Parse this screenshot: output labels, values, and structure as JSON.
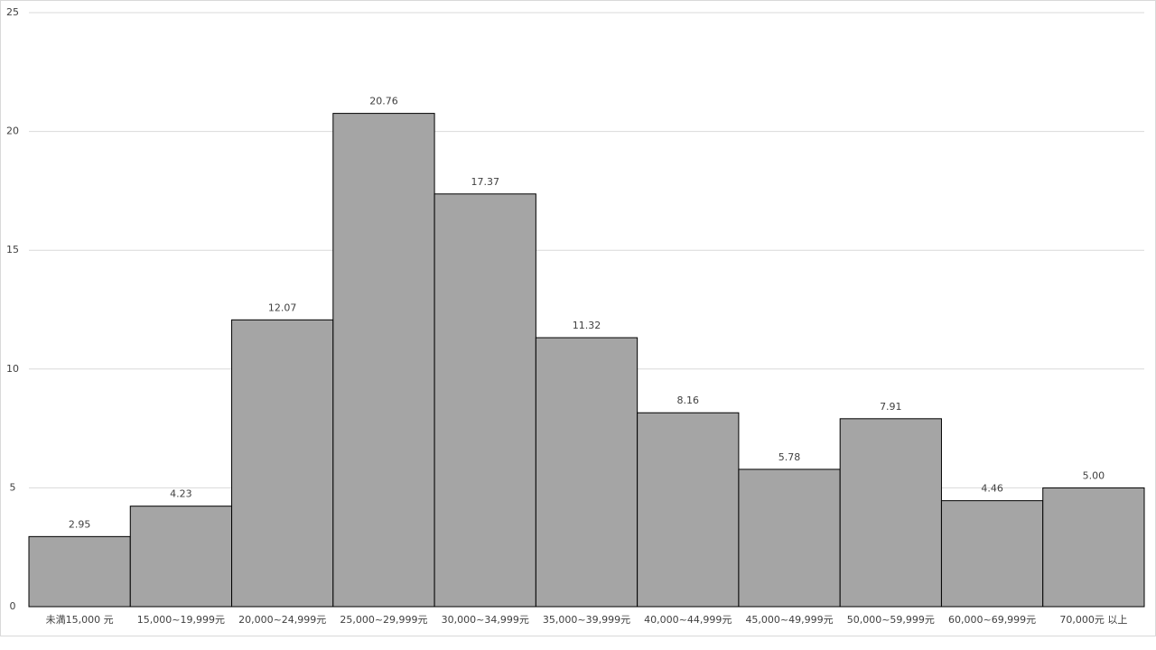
{
  "chart_data": {
    "type": "bar",
    "categories": [
      "未満15,000 元",
      "15,000~19,999元",
      "20,000~24,999元",
      "25,000~29,999元",
      "30,000~34,999元",
      "35,000~39,999元",
      "40,000~44,999元",
      "45,000~49,999元",
      "50,000~59,999元",
      "60,000~69,999元",
      "70,000元 以上"
    ],
    "values": [
      2.95,
      4.23,
      12.07,
      20.76,
      17.37,
      11.32,
      8.16,
      5.78,
      7.91,
      4.46,
      5.0
    ],
    "value_labels": [
      "2.95",
      "4.23",
      "12.07",
      "20.76",
      "17.37",
      "11.32",
      "8.16",
      "5.78",
      "7.91",
      "4.46",
      "5.00"
    ],
    "color": "#a5a5a5",
    "ylim": [
      0,
      25
    ],
    "yticks": [
      0,
      5,
      10,
      15,
      20,
      25
    ],
    "grid": true
  }
}
